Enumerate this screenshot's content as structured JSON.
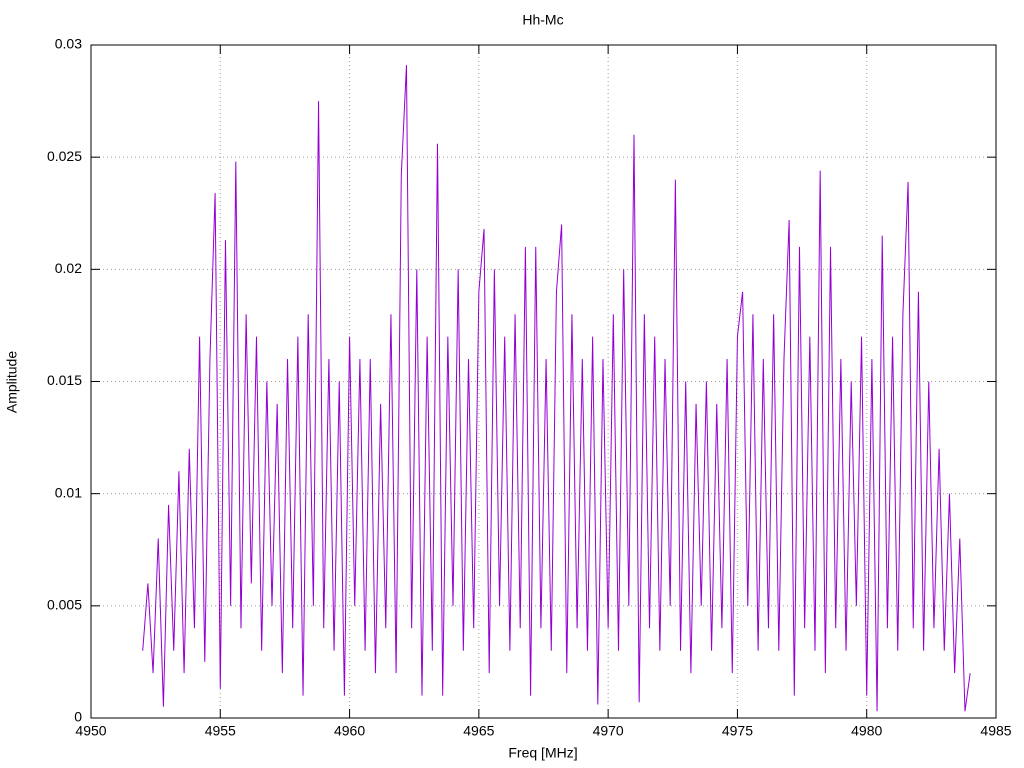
{
  "chart_data": {
    "type": "line",
    "title": "Hh-Mc",
    "x_label": "Freq [MHz]",
    "y_label": "Amplitude",
    "color": "#9400d3",
    "grid": true,
    "xlim": [
      4950,
      4985
    ],
    "xticks": [
      4950,
      4955,
      4960,
      4965,
      4970,
      4975,
      4980,
      4985
    ],
    "ylim": [
      0,
      0.03
    ],
    "yticks": [
      0,
      0.005,
      0.01,
      0.015,
      0.02,
      0.025,
      0.03
    ],
    "x": [
      4952.0,
      4952.2,
      4952.4,
      4952.6,
      4952.8,
      4953.0,
      4953.2,
      4953.4,
      4953.6,
      4953.8,
      4954.0,
      4954.2,
      4954.4,
      4954.6,
      4954.8,
      4955.0,
      4955.2,
      4955.4,
      4955.6,
      4955.8,
      4956.0,
      4956.2,
      4956.4,
      4956.6,
      4956.8,
      4957.0,
      4957.2,
      4957.4,
      4957.6,
      4957.8,
      4958.0,
      4958.2,
      4958.4,
      4958.6,
      4958.8,
      4959.0,
      4959.2,
      4959.4,
      4959.6,
      4959.8,
      4960.0,
      4960.2,
      4960.4,
      4960.6,
      4960.8,
      4961.0,
      4961.2,
      4961.4,
      4961.6,
      4961.8,
      4962.0,
      4962.2,
      4962.4,
      4962.6,
      4962.8,
      4963.0,
      4963.2,
      4963.4,
      4963.6,
      4963.8,
      4964.0,
      4964.2,
      4964.4,
      4964.6,
      4964.8,
      4965.0,
      4965.2,
      4965.4,
      4965.6,
      4965.8,
      4966.0,
      4966.2,
      4966.4,
      4966.6,
      4966.8,
      4967.0,
      4967.2,
      4967.4,
      4967.6,
      4967.8,
      4968.0,
      4968.2,
      4968.4,
      4968.6,
      4968.8,
      4969.0,
      4969.2,
      4969.4,
      4969.6,
      4969.8,
      4970.0,
      4970.2,
      4970.4,
      4970.6,
      4970.8,
      4971.0,
      4971.2,
      4971.4,
      4971.6,
      4971.8,
      4972.0,
      4972.2,
      4972.4,
      4972.6,
      4972.8,
      4973.0,
      4973.2,
      4973.4,
      4973.6,
      4973.8,
      4974.0,
      4974.2,
      4974.4,
      4974.6,
      4974.8,
      4975.0,
      4975.2,
      4975.4,
      4975.6,
      4975.8,
      4976.0,
      4976.2,
      4976.4,
      4976.6,
      4976.8,
      4977.0,
      4977.2,
      4977.4,
      4977.6,
      4977.8,
      4978.0,
      4978.2,
      4978.4,
      4978.6,
      4978.8,
      4979.0,
      4979.2,
      4979.4,
      4979.6,
      4979.8,
      4980.0,
      4980.2,
      4980.4,
      4980.6,
      4980.8,
      4981.0,
      4981.2,
      4981.4,
      4981.6,
      4981.8,
      4982.0,
      4982.2,
      4982.4,
      4982.6,
      4982.8,
      4983.0,
      4983.2,
      4983.4,
      4983.6,
      4983.8,
      4984.0
    ],
    "values": [
      0.003,
      0.006,
      0.002,
      0.008,
      0.0005,
      0.0095,
      0.003,
      0.011,
      0.002,
      0.012,
      0.004,
      0.017,
      0.0025,
      0.016,
      0.0234,
      0.0013,
      0.0213,
      0.005,
      0.0248,
      0.004,
      0.018,
      0.006,
      0.017,
      0.003,
      0.015,
      0.005,
      0.014,
      0.002,
      0.016,
      0.004,
      0.017,
      0.001,
      0.018,
      0.005,
      0.0275,
      0.004,
      0.016,
      0.003,
      0.015,
      0.001,
      0.017,
      0.005,
      0.016,
      0.003,
      0.016,
      0.002,
      0.014,
      0.004,
      0.018,
      0.002,
      0.0242,
      0.0291,
      0.004,
      0.02,
      0.001,
      0.017,
      0.003,
      0.0256,
      0.001,
      0.017,
      0.005,
      0.02,
      0.003,
      0.016,
      0.004,
      0.019,
      0.0218,
      0.002,
      0.02,
      0.005,
      0.017,
      0.003,
      0.018,
      0.004,
      0.021,
      0.001,
      0.021,
      0.004,
      0.016,
      0.003,
      0.019,
      0.022,
      0.002,
      0.018,
      0.004,
      0.016,
      0.003,
      0.017,
      0.0006,
      0.016,
      0.004,
      0.018,
      0.003,
      0.02,
      0.005,
      0.026,
      0.0007,
      0.018,
      0.004,
      0.017,
      0.003,
      0.016,
      0.005,
      0.024,
      0.003,
      0.015,
      0.002,
      0.014,
      0.005,
      0.015,
      0.003,
      0.014,
      0.004,
      0.016,
      0.002,
      0.017,
      0.019,
      0.005,
      0.018,
      0.003,
      0.016,
      0.004,
      0.018,
      0.003,
      0.016,
      0.0222,
      0.001,
      0.021,
      0.004,
      0.017,
      0.003,
      0.0244,
      0.002,
      0.021,
      0.004,
      0.016,
      0.003,
      0.015,
      0.005,
      0.017,
      0.001,
      0.016,
      0.0003,
      0.0215,
      0.004,
      0.017,
      0.003,
      0.018,
      0.0239,
      0.004,
      0.019,
      0.003,
      0.015,
      0.004,
      0.012,
      0.003,
      0.01,
      0.002,
      0.008,
      0.0003,
      0.002
    ]
  }
}
